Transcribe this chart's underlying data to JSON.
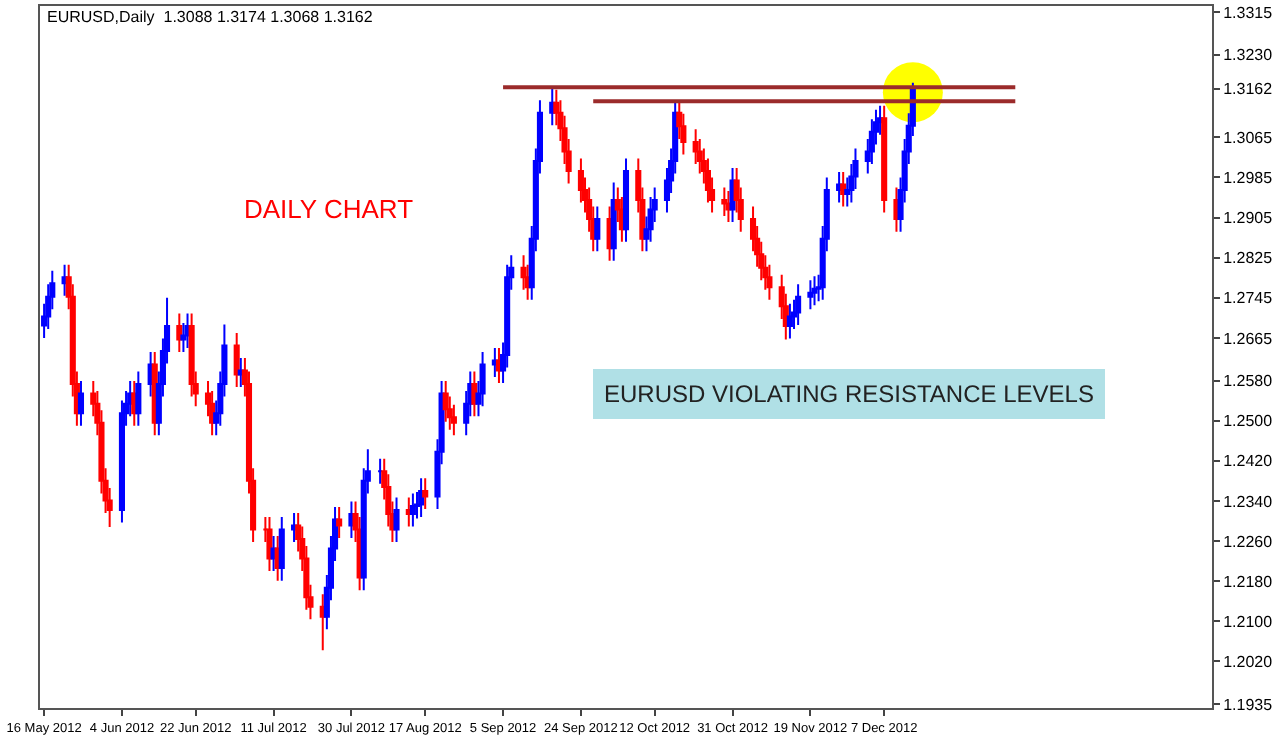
{
  "chart_data": {
    "type": "candlestick",
    "title": "EURUSD,Daily  1.3088 1.3174 1.3068 1.3162",
    "annotations": [
      "DAILY CHART",
      "EURUSD VIOLATING RESISTANCE LEVELS"
    ],
    "x": [
      "2012-05-16",
      "2012-05-17",
      "2012-05-18",
      "2012-05-21",
      "2012-05-22",
      "2012-05-23",
      "2012-05-24",
      "2012-05-25",
      "2012-05-28",
      "2012-05-29",
      "2012-05-30",
      "2012-05-31",
      "2012-06-01",
      "2012-06-04",
      "2012-06-05",
      "2012-06-06",
      "2012-06-07",
      "2012-06-08",
      "2012-06-11",
      "2012-06-12",
      "2012-06-13",
      "2012-06-14",
      "2012-06-15",
      "2012-06-18",
      "2012-06-19",
      "2012-06-20",
      "2012-06-21",
      "2012-06-22",
      "2012-06-25",
      "2012-06-26",
      "2012-06-27",
      "2012-06-28",
      "2012-06-29",
      "2012-07-02",
      "2012-07-03",
      "2012-07-04",
      "2012-07-05",
      "2012-07-06",
      "2012-07-09",
      "2012-07-10",
      "2012-07-11",
      "2012-07-12",
      "2012-07-13",
      "2012-07-16",
      "2012-07-17",
      "2012-07-18",
      "2012-07-19",
      "2012-07-20",
      "2012-07-23",
      "2012-07-24",
      "2012-07-25",
      "2012-07-26",
      "2012-07-27",
      "2012-07-30",
      "2012-07-31",
      "2012-08-01",
      "2012-08-02",
      "2012-08-03",
      "2012-08-06",
      "2012-08-07",
      "2012-08-08",
      "2012-08-09",
      "2012-08-10",
      "2012-08-13",
      "2012-08-14",
      "2012-08-15",
      "2012-08-16",
      "2012-08-17",
      "2012-08-20",
      "2012-08-21",
      "2012-08-22",
      "2012-08-23",
      "2012-08-24",
      "2012-08-27",
      "2012-08-28",
      "2012-08-29",
      "2012-08-30",
      "2012-08-31",
      "2012-09-03",
      "2012-09-04",
      "2012-09-05",
      "2012-09-06",
      "2012-09-07",
      "2012-09-10",
      "2012-09-11",
      "2012-09-12",
      "2012-09-13",
      "2012-09-14",
      "2012-09-17",
      "2012-09-18",
      "2012-09-19",
      "2012-09-20",
      "2012-09-21",
      "2012-09-24",
      "2012-09-25",
      "2012-09-26",
      "2012-09-27",
      "2012-09-28",
      "2012-10-01",
      "2012-10-02",
      "2012-10-03",
      "2012-10-04",
      "2012-10-05",
      "2012-10-08",
      "2012-10-09",
      "2012-10-10",
      "2012-10-11",
      "2012-10-12",
      "2012-10-15",
      "2012-10-16",
      "2012-10-17",
      "2012-10-18",
      "2012-10-19",
      "2012-10-22",
      "2012-10-23",
      "2012-10-24",
      "2012-10-25",
      "2012-10-26",
      "2012-10-29",
      "2012-10-30",
      "2012-10-31",
      "2012-11-01",
      "2012-11-02",
      "2012-11-05",
      "2012-11-06",
      "2012-11-07",
      "2012-11-08",
      "2012-11-09",
      "2012-11-12",
      "2012-11-13",
      "2012-11-14",
      "2012-11-15",
      "2012-11-16",
      "2012-11-19",
      "2012-11-20",
      "2012-11-21",
      "2012-11-22",
      "2012-11-23",
      "2012-11-26",
      "2012-11-27",
      "2012-11-28",
      "2012-11-29",
      "2012-11-30",
      "2012-12-03",
      "2012-12-04",
      "2012-12-05",
      "2012-12-06",
      "2012-12-07",
      "2012-12-10",
      "2012-12-11",
      "2012-12-12",
      "2012-12-13",
      "2012-12-14"
    ],
    "ohlc": [
      [
        1.269,
        1.2733,
        1.2665,
        1.2708
      ],
      [
        1.2708,
        1.2772,
        1.2683,
        1.2747
      ],
      [
        1.2747,
        1.2799,
        1.2722,
        1.2774
      ],
      [
        1.2774,
        1.2811,
        1.2749,
        1.2786
      ],
      [
        1.2786,
        1.2811,
        1.2722,
        1.2747
      ],
      [
        1.2747,
        1.2772,
        1.2548,
        1.2573
      ],
      [
        1.2573,
        1.2598,
        1.249,
        1.2515
      ],
      [
        1.2515,
        1.2579,
        1.249,
        1.2554
      ],
      [
        1.2554,
        1.2579,
        1.2509,
        1.2534
      ],
      [
        1.2534,
        1.2559,
        1.2471,
        1.2496
      ],
      [
        1.2496,
        1.2521,
        1.2355,
        1.238
      ],
      [
        1.238,
        1.2405,
        1.2316,
        1.2341
      ],
      [
        1.2341,
        1.2366,
        1.2288,
        1.2322
      ],
      [
        1.2322,
        1.254,
        1.2297,
        1.2515
      ],
      [
        1.2515,
        1.2559,
        1.249,
        1.2534
      ],
      [
        1.2534,
        1.2579,
        1.2509,
        1.2554
      ],
      [
        1.2554,
        1.2579,
        1.249,
        1.2515
      ],
      [
        1.2515,
        1.2598,
        1.249,
        1.2573
      ],
      [
        1.2573,
        1.2637,
        1.2548,
        1.2612
      ],
      [
        1.2612,
        1.2637,
        1.2471,
        1.2496
      ],
      [
        1.2496,
        1.2598,
        1.2471,
        1.2573
      ],
      [
        1.2573,
        1.2664,
        1.2548,
        1.2639
      ],
      [
        1.2639,
        1.2745,
        1.2614,
        1.2689
      ],
      [
        1.2689,
        1.2714,
        1.2637,
        1.2662
      ],
      [
        1.2662,
        1.2695,
        1.2637,
        1.267
      ],
      [
        1.267,
        1.2714,
        1.2645,
        1.2689
      ],
      [
        1.2689,
        1.2714,
        1.2548,
        1.2573
      ],
      [
        1.2573,
        1.2598,
        1.2529,
        1.2554
      ],
      [
        1.2554,
        1.2579,
        1.2509,
        1.2534
      ],
      [
        1.2534,
        1.2559,
        1.2471,
        1.2496
      ],
      [
        1.2496,
        1.254,
        1.2471,
        1.2515
      ],
      [
        1.2515,
        1.2598,
        1.249,
        1.2573
      ],
      [
        1.2573,
        1.2692,
        1.2548,
        1.265
      ],
      [
        1.265,
        1.2675,
        1.2567,
        1.2592
      ],
      [
        1.2592,
        1.2625,
        1.2567,
        1.26
      ],
      [
        1.26,
        1.2625,
        1.2548,
        1.2573
      ],
      [
        1.2573,
        1.2598,
        1.2355,
        1.238
      ],
      [
        1.238,
        1.2405,
        1.2258,
        1.2283
      ],
      [
        1.2283,
        1.2308,
        1.2258,
        1.2283
      ],
      [
        1.2283,
        1.2308,
        1.22,
        1.2225
      ],
      [
        1.2225,
        1.227,
        1.22,
        1.2245
      ],
      [
        1.2245,
        1.227,
        1.2181,
        1.2206
      ],
      [
        1.2206,
        1.2308,
        1.2181,
        1.2283
      ],
      [
        1.2283,
        1.2316,
        1.2258,
        1.2291
      ],
      [
        1.2291,
        1.2316,
        1.2239,
        1.2264
      ],
      [
        1.2264,
        1.2289,
        1.22,
        1.2225
      ],
      [
        1.2225,
        1.225,
        1.2123,
        1.2148
      ],
      [
        1.2148,
        1.2173,
        1.2104,
        1.2129
      ],
      [
        1.2129,
        1.2154,
        1.2042,
        1.2109
      ],
      [
        1.2109,
        1.2192,
        1.2084,
        1.2167
      ],
      [
        1.2167,
        1.227,
        1.2142,
        1.2245
      ],
      [
        1.2245,
        1.2328,
        1.222,
        1.2303
      ],
      [
        1.2303,
        1.2328,
        1.2266,
        1.2291
      ],
      [
        1.2291,
        1.2339,
        1.2266,
        1.2314
      ],
      [
        1.2314,
        1.2339,
        1.2258,
        1.2283
      ],
      [
        1.2283,
        1.2308,
        1.2162,
        1.2187
      ],
      [
        1.2187,
        1.2405,
        1.2162,
        1.238
      ],
      [
        1.238,
        1.2443,
        1.2355,
        1.2399
      ],
      [
        1.2399,
        1.2424,
        1.2374,
        1.2399
      ],
      [
        1.2399,
        1.2424,
        1.2343,
        1.2368
      ],
      [
        1.2368,
        1.2393,
        1.2289,
        1.2314
      ],
      [
        1.2314,
        1.2339,
        1.2258,
        1.2283
      ],
      [
        1.2283,
        1.2347,
        1.2258,
        1.2322
      ],
      [
        1.2322,
        1.2347,
        1.2289,
        1.2314
      ],
      [
        1.2314,
        1.2355,
        1.2289,
        1.233
      ],
      [
        1.233,
        1.2358,
        1.2305,
        1.2333
      ],
      [
        1.2333,
        1.2385,
        1.2308,
        1.236
      ],
      [
        1.236,
        1.2385,
        1.2324,
        1.2349
      ],
      [
        1.2349,
        1.2463,
        1.2324,
        1.2438
      ],
      [
        1.2438,
        1.2579,
        1.2413,
        1.2554
      ],
      [
        1.2554,
        1.2579,
        1.2498,
        1.2523
      ],
      [
        1.2523,
        1.2548,
        1.2482,
        1.2507
      ],
      [
        1.2507,
        1.2532,
        1.2471,
        1.2496
      ],
      [
        1.2496,
        1.2559,
        1.2471,
        1.2534
      ],
      [
        1.2534,
        1.2598,
        1.2509,
        1.2573
      ],
      [
        1.2573,
        1.2598,
        1.2509,
        1.2534
      ],
      [
        1.2534,
        1.2579,
        1.2509,
        1.2554
      ],
      [
        1.2554,
        1.2637,
        1.2529,
        1.2612
      ],
      [
        1.2612,
        1.2645,
        1.2587,
        1.262
      ],
      [
        1.262,
        1.2645,
        1.2575,
        1.26
      ],
      [
        1.26,
        1.2656,
        1.2575,
        1.2631
      ],
      [
        1.2631,
        1.2811,
        1.2606,
        1.2786
      ],
      [
        1.2786,
        1.283,
        1.2761,
        1.2805
      ],
      [
        1.2805,
        1.283,
        1.2761,
        1.2786
      ],
      [
        1.2786,
        1.2811,
        1.2741,
        1.2766
      ],
      [
        1.2766,
        1.2888,
        1.2741,
        1.2863
      ],
      [
        1.2863,
        1.3043,
        1.2838,
        1.3018
      ],
      [
        1.3018,
        1.3139,
        1.2993,
        1.3114
      ],
      [
        1.3114,
        1.3165,
        1.3089,
        1.3134
      ],
      [
        1.3134,
        1.316,
        1.3089,
        1.3114
      ],
      [
        1.3114,
        1.3139,
        1.3058,
        1.3083
      ],
      [
        1.3083,
        1.3108,
        1.3012,
        1.3037
      ],
      [
        1.3037,
        1.3062,
        1.2973,
        1.2998
      ],
      [
        1.2998,
        1.3023,
        1.2935,
        1.296
      ],
      [
        1.296,
        1.2985,
        1.2915,
        1.294
      ],
      [
        1.294,
        1.2965,
        1.2877,
        1.2902
      ],
      [
        1.2902,
        1.2927,
        1.2838,
        1.2863
      ],
      [
        1.2863,
        1.2927,
        1.2838,
        1.2902
      ],
      [
        1.2902,
        1.2927,
        1.2819,
        1.2844
      ],
      [
        1.2844,
        1.2975,
        1.2819,
        1.294
      ],
      [
        1.294,
        1.2965,
        1.2896,
        1.2921
      ],
      [
        1.2921,
        1.2946,
        1.2857,
        1.2882
      ],
      [
        1.2882,
        1.3023,
        1.2857,
        1.2998
      ],
      [
        1.2998,
        1.3023,
        1.2915,
        1.294
      ],
      [
        1.294,
        1.2965,
        1.2838,
        1.2863
      ],
      [
        1.2863,
        1.2907,
        1.2838,
        1.2882
      ],
      [
        1.2882,
        1.2946,
        1.2857,
        1.2921
      ],
      [
        1.2921,
        1.2965,
        1.2896,
        1.294
      ],
      [
        1.294,
        1.3004,
        1.2915,
        1.2979
      ],
      [
        1.2979,
        1.3043,
        1.2954,
        1.3018
      ],
      [
        1.3018,
        1.3137,
        1.2993,
        1.3114
      ],
      [
        1.3114,
        1.3135,
        1.3062,
        1.3087
      ],
      [
        1.3087,
        1.3112,
        1.3031,
        1.3056
      ],
      [
        1.3056,
        1.3081,
        1.3012,
        1.3037
      ],
      [
        1.3037,
        1.3062,
        1.2993,
        1.3018
      ],
      [
        1.3018,
        1.3043,
        1.2973,
        1.2998
      ],
      [
        1.2998,
        1.3023,
        1.2935,
        1.296
      ],
      [
        1.296,
        1.2985,
        1.2915,
        1.294
      ],
      [
        1.294,
        1.2965,
        1.2908,
        1.2933
      ],
      [
        1.2933,
        1.2958,
        1.2896,
        1.2921
      ],
      [
        1.2921,
        1.3004,
        1.2896,
        1.2979
      ],
      [
        1.2979,
        1.3004,
        1.2915,
        1.294
      ],
      [
        1.294,
        1.2965,
        1.2877,
        1.2902
      ],
      [
        1.2902,
        1.2927,
        1.2838,
        1.2863
      ],
      [
        1.2863,
        1.2888,
        1.2807,
        1.2832
      ],
      [
        1.2832,
        1.2857,
        1.278,
        1.2805
      ],
      [
        1.2805,
        1.283,
        1.2761,
        1.2786
      ],
      [
        1.2786,
        1.2811,
        1.2741,
        1.2766
      ],
      [
        1.2766,
        1.2791,
        1.2703,
        1.2728
      ],
      [
        1.2728,
        1.2753,
        1.2662,
        1.2689
      ],
      [
        1.2689,
        1.2733,
        1.2664,
        1.2708
      ],
      [
        1.2708,
        1.2741,
        1.2683,
        1.2716
      ],
      [
        1.2716,
        1.2772,
        1.2691,
        1.2747
      ],
      [
        1.2747,
        1.278,
        1.2722,
        1.2755
      ],
      [
        1.2755,
        1.2788,
        1.273,
        1.2763
      ],
      [
        1.2763,
        1.2791,
        1.2738,
        1.2766
      ],
      [
        1.2766,
        1.2888,
        1.2741,
        1.2863
      ],
      [
        1.2863,
        1.2985,
        1.2838,
        1.296
      ],
      [
        1.296,
        1.2996,
        1.2935,
        1.2971
      ],
      [
        1.2971,
        1.2996,
        1.2927,
        1.2952
      ],
      [
        1.2952,
        1.2985,
        1.2927,
        1.296
      ],
      [
        1.296,
        1.3012,
        1.2935,
        1.2987
      ],
      [
        1.2987,
        1.3043,
        1.2962,
        1.3018
      ],
      [
        1.3018,
        1.3062,
        1.2993,
        1.3037
      ],
      [
        1.3037,
        1.3101,
        1.3012,
        1.3076
      ],
      [
        1.3076,
        1.312,
        1.3051,
        1.3095
      ],
      [
        1.3095,
        1.3128,
        1.307,
        1.3103
      ],
      [
        1.3103,
        1.3128,
        1.2915,
        1.294
      ],
      [
        1.294,
        1.2965,
        1.2877,
        1.2902
      ],
      [
        1.2902,
        1.2985,
        1.2877,
        1.296
      ],
      [
        1.296,
        1.3062,
        1.2935,
        1.3037
      ],
      [
        1.3037,
        1.3113,
        1.3012,
        1.3088
      ],
      [
        1.3088,
        1.3174,
        1.3068,
        1.3162
      ]
    ],
    "colors": [
      "#0000ff",
      "#0000ff",
      "#0000ff",
      "#0000ff",
      "#ff0000",
      "#ff0000",
      "#ff0000",
      "#0000ff",
      "#ff0000",
      "#ff0000",
      "#ff0000",
      "#ff0000",
      "#ff0000",
      "#0000ff",
      "#0000ff",
      "#0000ff",
      "#ff0000",
      "#0000ff",
      "#0000ff",
      "#ff0000",
      "#0000ff",
      "#0000ff",
      "#0000ff",
      "#ff0000",
      "#0000ff",
      "#0000ff",
      "#ff0000",
      "#ff0000",
      "#ff0000",
      "#ff0000",
      "#0000ff",
      "#0000ff",
      "#0000ff",
      "#ff0000",
      "#0000ff",
      "#ff0000",
      "#ff0000",
      "#ff0000",
      "#ff0000",
      "#ff0000",
      "#0000ff",
      "#ff0000",
      "#0000ff",
      "#0000ff",
      "#ff0000",
      "#ff0000",
      "#ff0000",
      "#ff0000",
      "#ff0000",
      "#0000ff",
      "#0000ff",
      "#0000ff",
      "#ff0000",
      "#0000ff",
      "#ff0000",
      "#ff0000",
      "#0000ff",
      "#0000ff",
      "#0000ff",
      "#ff0000",
      "#ff0000",
      "#ff0000",
      "#0000ff",
      "#ff0000",
      "#0000ff",
      "#0000ff",
      "#0000ff",
      "#ff0000",
      "#0000ff",
      "#0000ff",
      "#ff0000",
      "#ff0000",
      "#ff0000",
      "#0000ff",
      "#0000ff",
      "#ff0000",
      "#0000ff",
      "#0000ff",
      "#0000ff",
      "#ff0000",
      "#0000ff",
      "#0000ff",
      "#0000ff",
      "#ff0000",
      "#ff0000",
      "#0000ff",
      "#0000ff",
      "#0000ff",
      "#0000ff",
      "#ff0000",
      "#ff0000",
      "#ff0000",
      "#ff0000",
      "#ff0000",
      "#ff0000",
      "#ff0000",
      "#ff0000",
      "#0000ff",
      "#ff0000",
      "#0000ff",
      "#ff0000",
      "#ff0000",
      "#0000ff",
      "#ff0000",
      "#ff0000",
      "#0000ff",
      "#0000ff",
      "#0000ff",
      "#0000ff",
      "#0000ff",
      "#0000ff",
      "#ff0000",
      "#ff0000",
      "#ff0000",
      "#ff0000",
      "#ff0000",
      "#ff0000",
      "#ff0000",
      "#ff0000",
      "#ff0000",
      "#0000ff",
      "#ff0000",
      "#ff0000",
      "#ff0000",
      "#ff0000",
      "#ff0000",
      "#ff0000",
      "#ff0000",
      "#ff0000",
      "#ff0000",
      "#0000ff",
      "#0000ff",
      "#0000ff",
      "#0000ff",
      "#0000ff",
      "#0000ff",
      "#0000ff",
      "#0000ff",
      "#0000ff",
      "#ff0000",
      "#0000ff",
      "#0000ff",
      "#0000ff",
      "#0000ff",
      "#0000ff",
      "#0000ff",
      "#0000ff",
      "#ff0000",
      "#ff0000",
      "#0000ff",
      "#0000ff",
      "#0000ff",
      "#0000ff"
    ],
    "series": [
      {
        "type": "scatter",
        "color": "#ffff00",
        "marker": "circle",
        "x": [
          "2012-12-14"
        ],
        "values": [
          1.3155
        ]
      },
      {
        "type": "line",
        "color": "#9b2b2b",
        "x": [
          "2012-09-05",
          "2013-01-08"
        ],
        "values": [
          1.3165,
          1.3165
        ]
      },
      {
        "type": "line",
        "color": "#9b2b2b",
        "x": [
          "2012-09-27",
          "2013-01-08"
        ],
        "values": [
          1.3137,
          1.3137
        ]
      }
    ],
    "xlim": [
      "2012-05-15",
      "2013-02-25"
    ],
    "xticks": [
      {
        "value": "2012-05-16",
        "label": "16 May 2012"
      },
      {
        "value": "2012-06-04",
        "label": "4 Jun 2012"
      },
      {
        "value": "2012-06-22",
        "label": "22 Jun 2012"
      },
      {
        "value": "2012-07-11",
        "label": "11 Jul 2012"
      },
      {
        "value": "2012-07-30",
        "label": "30 Jul 2012"
      },
      {
        "value": "2012-08-17",
        "label": "17 Aug 2012"
      },
      {
        "value": "2012-09-05",
        "label": "5 Sep 2012"
      },
      {
        "value": "2012-09-24",
        "label": "24 Sep 2012"
      },
      {
        "value": "2012-10-12",
        "label": "12 Oct 2012"
      },
      {
        "value": "2012-10-31",
        "label": "31 Oct 2012"
      },
      {
        "value": "2012-11-19",
        "label": "19 Nov 2012"
      },
      {
        "value": "2012-12-07",
        "label": "7 Dec 2012"
      }
    ],
    "ylim": [
      1.1927,
      1.3327
    ],
    "yticks": [
      1.3315,
      {
        "value": 1.323,
        "label": "1.3230"
      },
      1.3162,
      1.3065,
      1.2985,
      1.2905,
      1.2825,
      1.2745,
      1.2665,
      {
        "value": 1.258,
        "label": "1.2580"
      },
      {
        "value": 1.25,
        "label": "1.2500"
      },
      {
        "value": 1.242,
        "label": "1.2420"
      },
      {
        "value": 1.234,
        "label": "1.2340"
      },
      {
        "value": 1.226,
        "label": "1.2260"
      },
      {
        "value": 1.218,
        "label": "1.2180"
      },
      {
        "value": 1.21,
        "label": "1.2100"
      },
      {
        "value": 1.202,
        "label": "1.2020"
      },
      1.1935
    ]
  }
}
